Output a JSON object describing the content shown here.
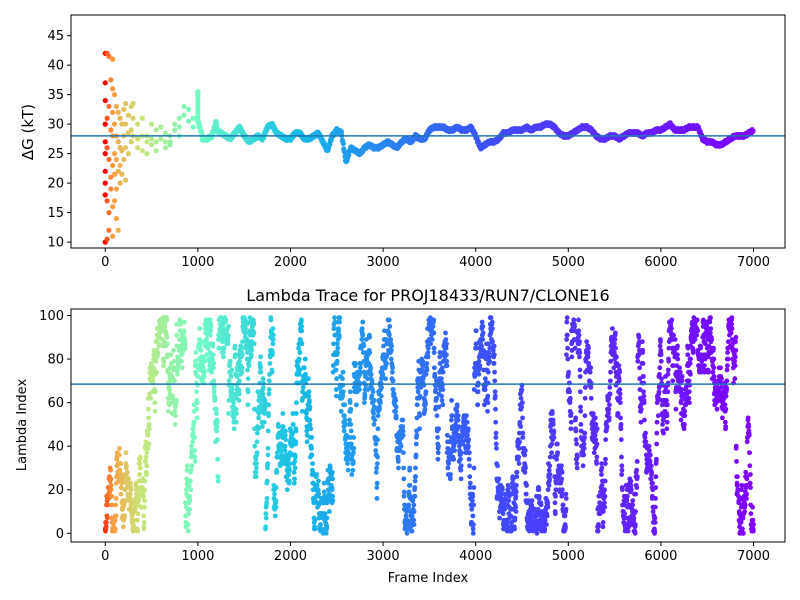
{
  "chart_data": [
    {
      "type": "scatter",
      "title": "",
      "xlabel": "",
      "ylabel": "ΔG (kT)",
      "xlim": [
        -370,
        7340
      ],
      "ylim": [
        9,
        48.5
      ],
      "xticks": [
        0,
        1000,
        2000,
        3000,
        4000,
        5000,
        6000,
        7000
      ],
      "xtick_labels": [
        "0",
        "1000",
        "2000",
        "3000",
        "4000",
        "5000",
        "6000",
        "7000"
      ],
      "yticks": [
        10,
        15,
        20,
        25,
        30,
        35,
        40,
        45
      ],
      "ytick_labels": [
        "10",
        "15",
        "20",
        "25",
        "30",
        "35",
        "40",
        "45"
      ],
      "hline": {
        "y": 28.0,
        "color": "#1f77b4"
      },
      "colormap": "rainbow (red at frame 0 → violet at frame 7000)",
      "grid": false,
      "points": [
        [
          0,
          42
        ],
        [
          0,
          37
        ],
        [
          0,
          34
        ],
        [
          0,
          30
        ],
        [
          0,
          27
        ],
        [
          0,
          25
        ],
        [
          0,
          22
        ],
        [
          0,
          20
        ],
        [
          0,
          18
        ],
        [
          0,
          10
        ],
        [
          20,
          42
        ],
        [
          20,
          31
        ],
        [
          20,
          26
        ],
        [
          20,
          17
        ],
        [
          20,
          10.5
        ],
        [
          40,
          41.5
        ],
        [
          40,
          33
        ],
        [
          40,
          24
        ],
        [
          40,
          15
        ],
        [
          40,
          12
        ],
        [
          60,
          37.5
        ],
        [
          60,
          29
        ],
        [
          60,
          21
        ],
        [
          60,
          19
        ],
        [
          80,
          41
        ],
        [
          80,
          36
        ],
        [
          80,
          32
        ],
        [
          80,
          28
        ],
        [
          80,
          23
        ],
        [
          80,
          16
        ],
        [
          80,
          11
        ],
        [
          100,
          35
        ],
        [
          100,
          30
        ],
        [
          100,
          25
        ],
        [
          100,
          21.5
        ],
        [
          100,
          17
        ],
        [
          120,
          33
        ],
        [
          120,
          28
        ],
        [
          120,
          24
        ],
        [
          120,
          19
        ],
        [
          120,
          14
        ],
        [
          140,
          32
        ],
        [
          140,
          27
        ],
        [
          140,
          22
        ],
        [
          140,
          12
        ],
        [
          160,
          31
        ],
        [
          160,
          26
        ],
        [
          160,
          23
        ],
        [
          160,
          20
        ],
        [
          180,
          30
        ],
        [
          180,
          25.5
        ],
        [
          180,
          21.5
        ],
        [
          200,
          32.5
        ],
        [
          200,
          28
        ],
        [
          200,
          24
        ],
        [
          220,
          33.5
        ],
        [
          220,
          30
        ],
        [
          220,
          26
        ],
        [
          220,
          20.5
        ],
        [
          250,
          31.5
        ],
        [
          250,
          28.5
        ],
        [
          250,
          25
        ],
        [
          280,
          33
        ],
        [
          280,
          29
        ],
        [
          280,
          27
        ],
        [
          300,
          33.5
        ],
        [
          300,
          31
        ],
        [
          300,
          28
        ],
        [
          350,
          30
        ],
        [
          350,
          27.5
        ],
        [
          350,
          26
        ],
        [
          400,
          31
        ],
        [
          400,
          28
        ],
        [
          400,
          25.5
        ],
        [
          450,
          28
        ],
        [
          450,
          25
        ],
        [
          450,
          27
        ],
        [
          500,
          30
        ],
        [
          500,
          27.5
        ],
        [
          500,
          26.5
        ],
        [
          550,
          29
        ],
        [
          550,
          27
        ],
        [
          550,
          25.5
        ],
        [
          600,
          29.5
        ],
        [
          600,
          27.5
        ],
        [
          650,
          28.5
        ],
        [
          650,
          27
        ],
        [
          650,
          26
        ],
        [
          700,
          28
        ],
        [
          700,
          27
        ],
        [
          700,
          26.5
        ],
        [
          750,
          30
        ],
        [
          750,
          29
        ],
        [
          800,
          31
        ],
        [
          800,
          29.5
        ],
        [
          800,
          28
        ],
        [
          850,
          33
        ],
        [
          850,
          31.5
        ],
        [
          900,
          32.5
        ],
        [
          900,
          30.5
        ],
        [
          950,
          31
        ],
        [
          950,
          29.5
        ],
        [
          1000,
          35.5
        ],
        [
          1000,
          30.5
        ],
        [
          1050,
          28
        ],
        [
          1050,
          27.5
        ],
        [
          1100,
          27.5
        ],
        [
          1150,
          28
        ],
        [
          1200,
          30.5
        ],
        [
          1200,
          29
        ],
        [
          1250,
          28.5
        ],
        [
          1300,
          28
        ],
        [
          1350,
          27.5
        ],
        [
          1400,
          28.5
        ],
        [
          1450,
          29.5
        ],
        [
          1500,
          28
        ],
        [
          1550,
          27
        ],
        [
          1600,
          27.5
        ],
        [
          1650,
          28
        ],
        [
          1700,
          27.5
        ],
        [
          1750,
          29.5
        ],
        [
          1800,
          30
        ],
        [
          1850,
          28.5
        ],
        [
          1900,
          28
        ],
        [
          1950,
          27.5
        ],
        [
          2000,
          27.5
        ],
        [
          2050,
          28.5
        ],
        [
          2100,
          28.5
        ],
        [
          2150,
          27.5
        ],
        [
          2200,
          27.5
        ],
        [
          2250,
          28
        ],
        [
          2300,
          28.5
        ],
        [
          2350,
          27
        ],
        [
          2400,
          25.5
        ],
        [
          2450,
          28
        ],
        [
          2500,
          29
        ],
        [
          2550,
          28.5
        ],
        [
          2600,
          23.5
        ],
        [
          2650,
          26
        ],
        [
          2700,
          25.5
        ],
        [
          2750,
          25
        ],
        [
          2800,
          26
        ],
        [
          2850,
          26.5
        ],
        [
          2900,
          26
        ],
        [
          2950,
          26
        ],
        [
          3000,
          26.5
        ],
        [
          3050,
          27
        ],
        [
          3100,
          26.5
        ],
        [
          3150,
          26
        ],
        [
          3200,
          27
        ],
        [
          3250,
          27.5
        ],
        [
          3300,
          27
        ],
        [
          3350,
          28
        ],
        [
          3400,
          27.5
        ],
        [
          3450,
          27.5
        ],
        [
          3500,
          29
        ],
        [
          3550,
          29.5
        ],
        [
          3600,
          29.5
        ],
        [
          3650,
          29.5
        ],
        [
          3700,
          29
        ],
        [
          3750,
          29
        ],
        [
          3800,
          29.5
        ],
        [
          3850,
          29
        ],
        [
          3900,
          29
        ],
        [
          3950,
          29.5
        ],
        [
          4000,
          28
        ],
        [
          4050,
          26
        ],
        [
          4100,
          26.5
        ],
        [
          4150,
          27
        ],
        [
          4200,
          27
        ],
        [
          4250,
          27.5
        ],
        [
          4300,
          28.5
        ],
        [
          4350,
          28.5
        ],
        [
          4400,
          29
        ],
        [
          4450,
          29
        ],
        [
          4500,
          29
        ],
        [
          4550,
          29.5
        ],
        [
          4600,
          29
        ],
        [
          4650,
          29.5
        ],
        [
          4700,
          29.5
        ],
        [
          4750,
          30
        ],
        [
          4800,
          30
        ],
        [
          4850,
          29.5
        ],
        [
          4900,
          28.5
        ],
        [
          4950,
          28
        ],
        [
          5000,
          28
        ],
        [
          5050,
          28.5
        ],
        [
          5100,
          29
        ],
        [
          5150,
          29.5
        ],
        [
          5200,
          29.5
        ],
        [
          5250,
          29
        ],
        [
          5300,
          28
        ],
        [
          5350,
          27.5
        ],
        [
          5400,
          27.5
        ],
        [
          5450,
          28
        ],
        [
          5500,
          28
        ],
        [
          5550,
          27.5
        ],
        [
          5600,
          28
        ],
        [
          5650,
          28.5
        ],
        [
          5700,
          28.5
        ],
        [
          5750,
          28.5
        ],
        [
          5800,
          28
        ],
        [
          5850,
          28.5
        ],
        [
          5900,
          28.5
        ],
        [
          5950,
          29
        ],
        [
          6000,
          29
        ],
        [
          6050,
          29.5
        ],
        [
          6100,
          30
        ],
        [
          6150,
          29
        ],
        [
          6200,
          29
        ],
        [
          6250,
          29
        ],
        [
          6300,
          29.5
        ],
        [
          6350,
          29.5
        ],
        [
          6400,
          29.5
        ],
        [
          6450,
          27.5
        ],
        [
          6500,
          27
        ],
        [
          6550,
          27
        ],
        [
          6600,
          26.5
        ],
        [
          6650,
          26.5
        ],
        [
          6700,
          27
        ],
        [
          6750,
          27.5
        ],
        [
          6800,
          28
        ],
        [
          6850,
          28
        ],
        [
          6900,
          28
        ],
        [
          6950,
          28.5
        ],
        [
          7000,
          29
        ]
      ]
    },
    {
      "type": "scatter",
      "title": "Lambda Trace for PROJ18433/RUN7/CLONE16",
      "xlabel": "Frame Index",
      "ylabel": "Lambda Index",
      "xlim": [
        -370,
        7340
      ],
      "ylim": [
        -4,
        103
      ],
      "xticks": [
        0,
        1000,
        2000,
        3000,
        4000,
        5000,
        6000,
        7000
      ],
      "xtick_labels": [
        "0",
        "1000",
        "2000",
        "3000",
        "4000",
        "5000",
        "6000",
        "7000"
      ],
      "yticks": [
        0,
        20,
        40,
        60,
        80,
        100
      ],
      "ytick_labels": [
        "0",
        "20",
        "40",
        "60",
        "80",
        "100"
      ],
      "hline": {
        "y": 68.5,
        "color": "#1f77b4"
      },
      "colormap": "rainbow (red at frame 0 → violet at frame 7000)",
      "grid": false,
      "sampling": "dense random walk over lambda indices 0–99 across frames 0–7000 (~one point per frame)"
    }
  ],
  "colors": {
    "hline": "#1f77b4",
    "axes": "#000000",
    "background": "#ffffff"
  }
}
